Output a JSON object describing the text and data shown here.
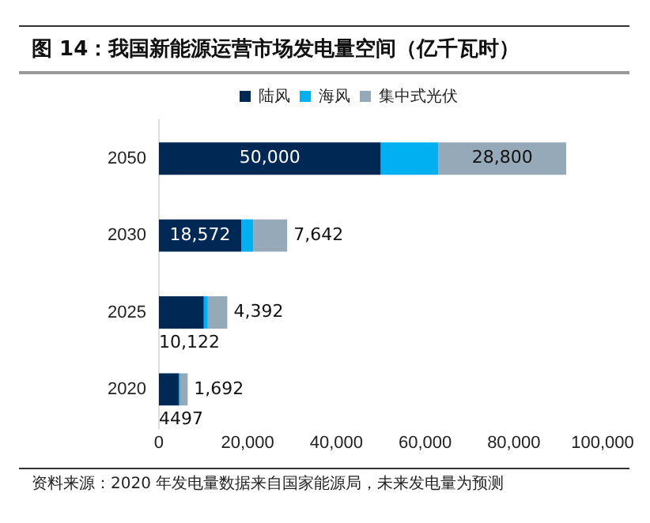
{
  "chart_data": {
    "type": "bar",
    "orientation": "horizontal",
    "stacked": true,
    "title": "图 14：我国新能源运营市场发电量空间（亿千瓦时）",
    "categories": [
      "2050",
      "2030",
      "2025",
      "2020"
    ],
    "series": [
      {
        "name": "陆风",
        "color": "#002855",
        "values": [
          50000,
          18572,
          10122,
          4497
        ],
        "value_labels": [
          "50,000",
          "18,572",
          "10,122",
          "4497"
        ]
      },
      {
        "name": "海风",
        "color": "#00b0f0",
        "values": [
          13000,
          2700,
          900,
          300
        ]
      },
      {
        "name": "集中式光伏",
        "color": "#96a9b9",
        "values": [
          28800,
          7642,
          4392,
          1692
        ],
        "value_labels": [
          "28,800",
          "7,642",
          "4,392",
          "1,692"
        ]
      }
    ],
    "xlim": [
      0,
      100000
    ],
    "xticks": [
      {
        "value": 0,
        "label": "0"
      },
      {
        "value": 20000,
        "label": "20,000"
      },
      {
        "value": 40000,
        "label": "40,000"
      },
      {
        "value": 60000,
        "label": "60,000"
      },
      {
        "value": 80000,
        "label": "80,000"
      },
      {
        "value": 100000,
        "label": "100,000"
      }
    ],
    "grid": false,
    "legend": "top",
    "annotations": [
      "资料来源：2020 年发电量数据来自国家能源局，未来发电量为预测"
    ]
  }
}
